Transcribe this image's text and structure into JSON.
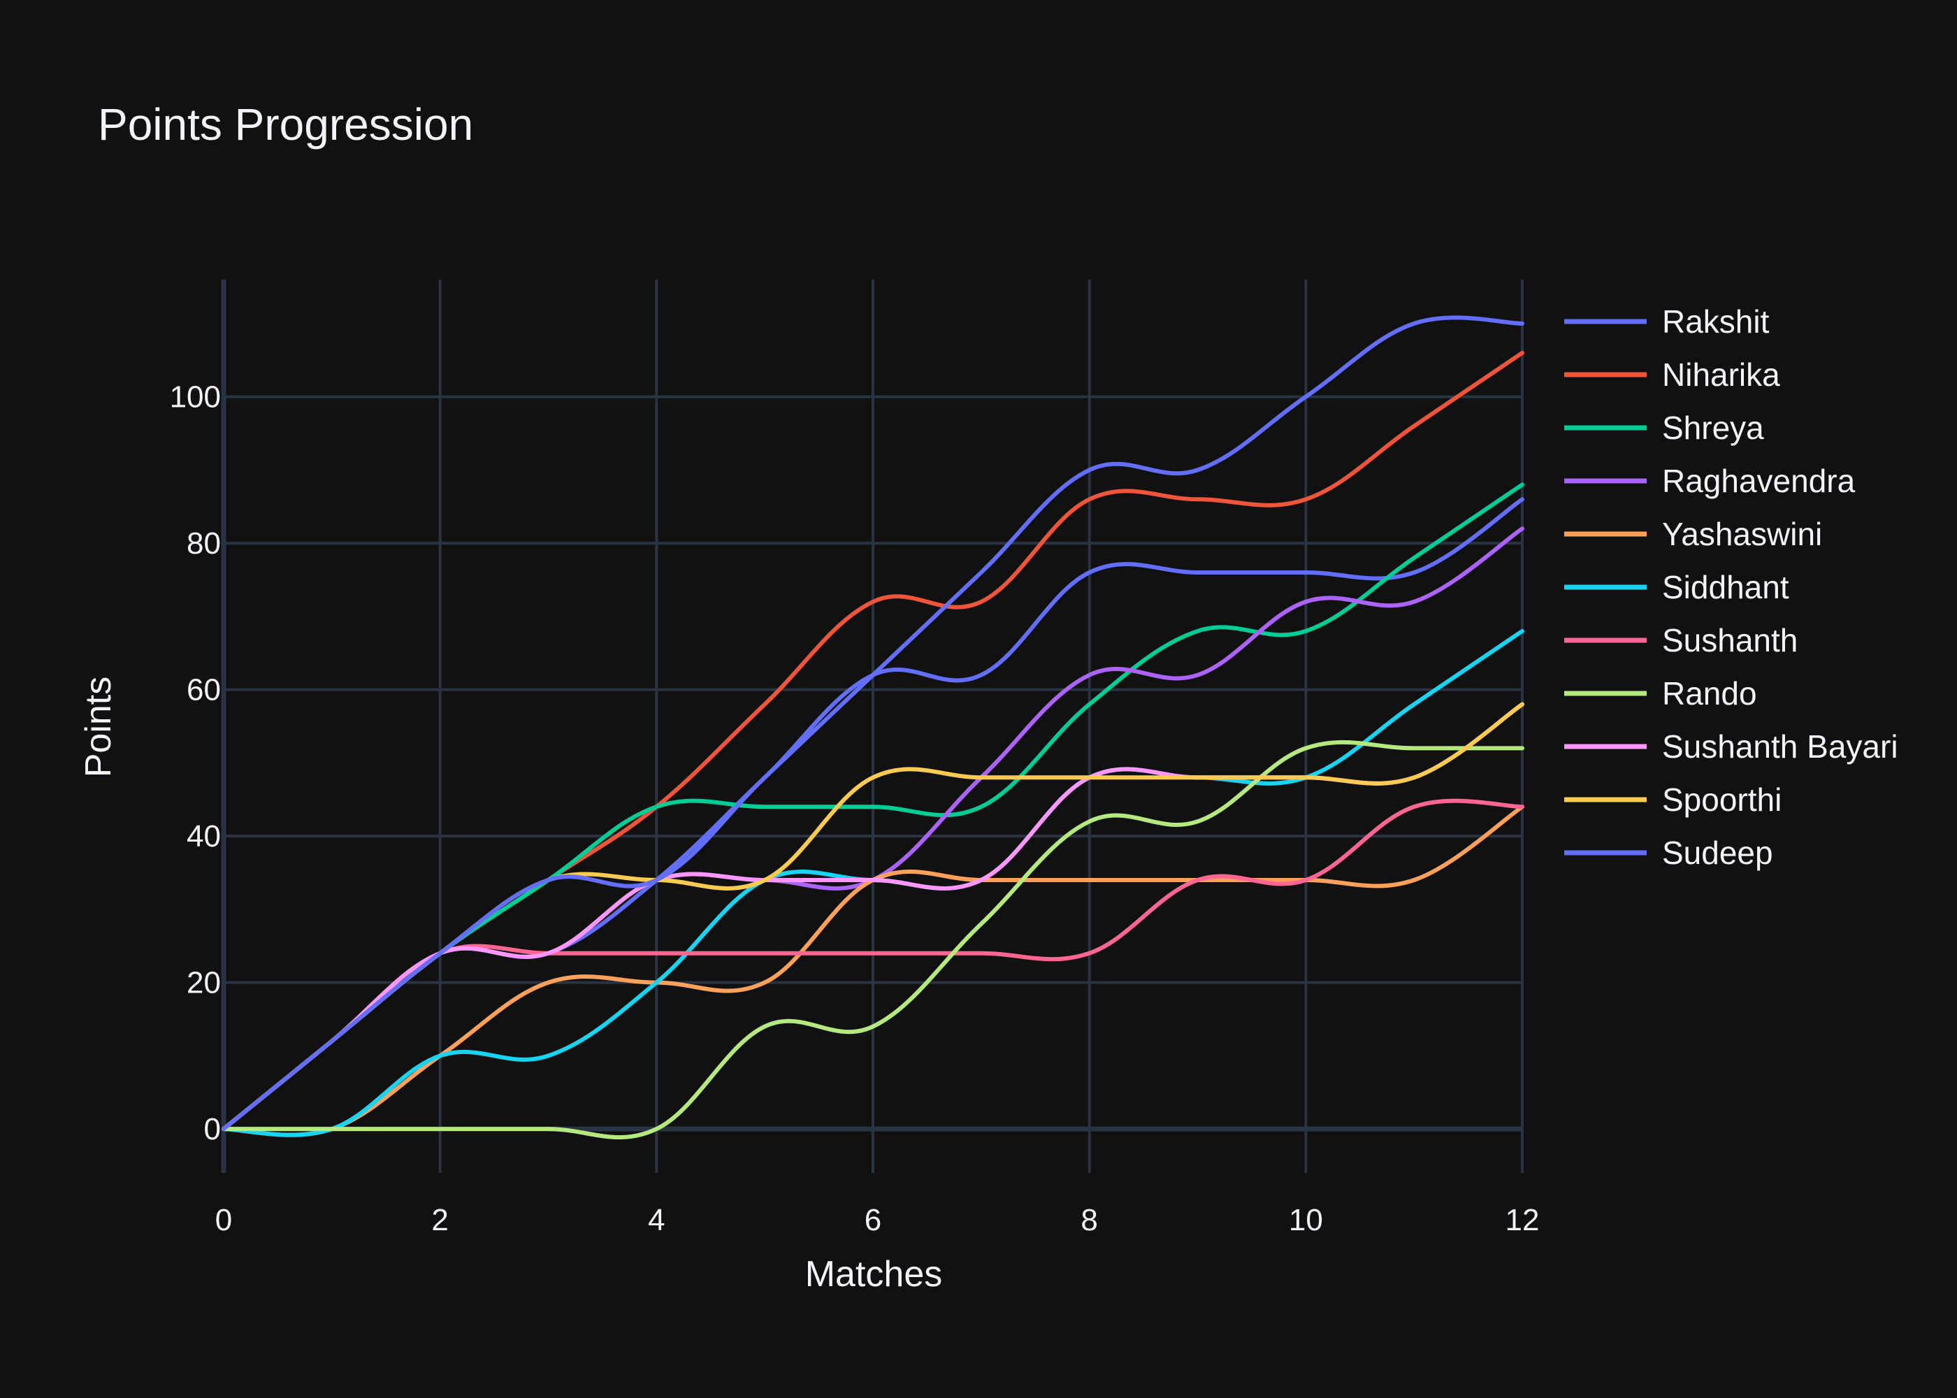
{
  "chart_data": {
    "type": "line",
    "title": "Points Progression",
    "xlabel": "Matches",
    "ylabel": "Points",
    "xlim": [
      0,
      12
    ],
    "ylim": [
      -6,
      116
    ],
    "xticks": [
      0,
      2,
      4,
      6,
      8,
      10,
      12
    ],
    "yticks": [
      0,
      20,
      40,
      60,
      80,
      100
    ],
    "grid": true,
    "line_shape": "spline",
    "legend_position": "right",
    "background": "#111111",
    "x": [
      0,
      1,
      2,
      3,
      4,
      5,
      6,
      7,
      8,
      9,
      10,
      11,
      12
    ],
    "series": [
      {
        "name": "Rakshit",
        "color": "#636efa",
        "values": [
          0,
          12,
          24,
          24,
          34,
          48,
          62,
          62,
          76,
          76,
          76,
          76,
          86
        ]
      },
      {
        "name": "Niharika",
        "color": "#EF553B",
        "values": [
          0,
          12,
          24,
          34,
          44,
          58,
          72,
          72,
          86,
          86,
          86,
          96,
          106
        ]
      },
      {
        "name": "Shreya",
        "color": "#00cc96",
        "values": [
          0,
          12,
          24,
          34,
          44,
          44,
          44,
          44,
          58,
          68,
          68,
          78,
          88
        ]
      },
      {
        "name": "Raghavendra",
        "color": "#ab63fa",
        "values": [
          0,
          12,
          24,
          24,
          34,
          34,
          34,
          48,
          62,
          62,
          72,
          72,
          82
        ]
      },
      {
        "name": "Yashaswini",
        "color": "#FFA15A",
        "values": [
          0,
          0,
          10,
          20,
          20,
          20,
          34,
          34,
          34,
          34,
          34,
          34,
          44
        ]
      },
      {
        "name": "Siddhant",
        "color": "#19d3f3",
        "values": [
          0,
          0,
          10,
          10,
          20,
          34,
          34,
          34,
          48,
          48,
          48,
          58,
          68
        ]
      },
      {
        "name": "Sushanth",
        "color": "#FF6692",
        "values": [
          0,
          12,
          24,
          24,
          24,
          24,
          24,
          24,
          24,
          34,
          34,
          44,
          44
        ]
      },
      {
        "name": "Rando",
        "color": "#B6E880",
        "values": [
          0,
          0,
          0,
          0,
          0,
          14,
          14,
          28,
          42,
          42,
          52,
          52,
          52
        ]
      },
      {
        "name": "Sushanth Bayari",
        "color": "#FF97FF",
        "values": [
          0,
          12,
          24,
          24,
          34,
          34,
          34,
          34,
          48,
          48,
          48,
          48,
          58
        ]
      },
      {
        "name": "Spoorthi",
        "color": "#FECB52",
        "values": [
          0,
          12,
          24,
          34,
          34,
          34,
          48,
          48,
          48,
          48,
          48,
          48,
          58
        ]
      },
      {
        "name": "Sudeep",
        "color": "#636efa",
        "values": [
          0,
          12,
          24,
          34,
          34,
          48,
          62,
          76,
          90,
          90,
          100,
          110,
          110
        ]
      }
    ]
  }
}
